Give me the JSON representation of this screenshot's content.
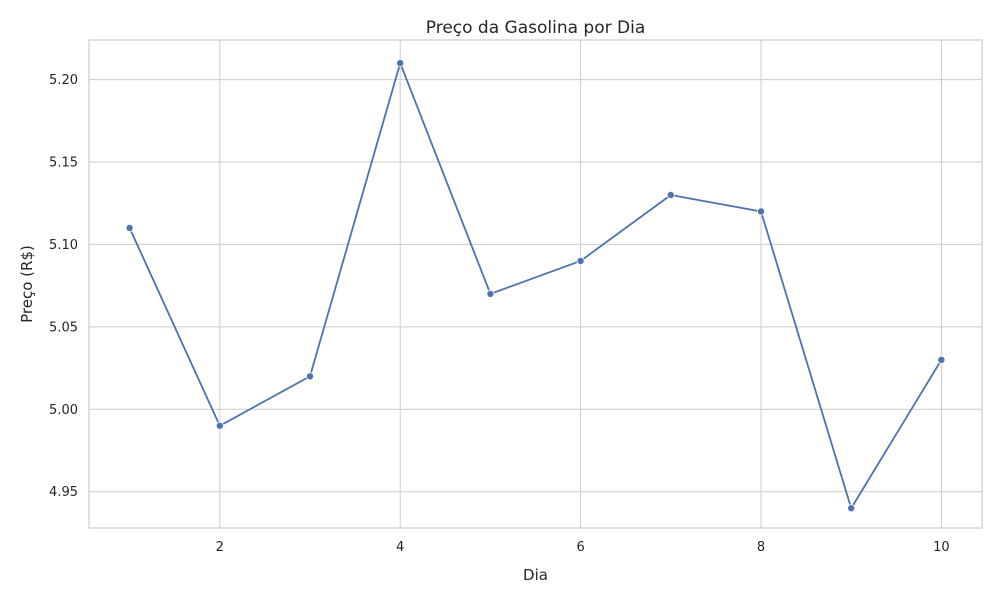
{
  "chart_data": {
    "type": "line",
    "title": "Preço da Gasolina por Dia",
    "xlabel": "Dia",
    "ylabel": "Preço (R$)",
    "x": [
      1,
      2,
      3,
      4,
      5,
      6,
      7,
      8,
      9,
      10
    ],
    "series": [
      {
        "values": [
          5.11,
          4.99,
          5.02,
          5.21,
          5.07,
          5.09,
          5.13,
          5.12,
          4.94,
          5.03
        ]
      }
    ],
    "xlim": [
      0.55,
      10.45
    ],
    "ylim": [
      4.928,
      5.224
    ],
    "xticks": [
      2,
      4,
      6,
      8,
      10
    ],
    "xtick_labels": [
      "2",
      "4",
      "6",
      "8",
      "10"
    ],
    "yticks": [
      4.95,
      5.0,
      5.05,
      5.1,
      5.15,
      5.2
    ],
    "ytick_labels": [
      "4.95",
      "5.00",
      "5.05",
      "5.10",
      "5.15",
      "5.20"
    ],
    "grid": true,
    "markers": true,
    "colors": {
      "line": "#4c72b0"
    }
  }
}
